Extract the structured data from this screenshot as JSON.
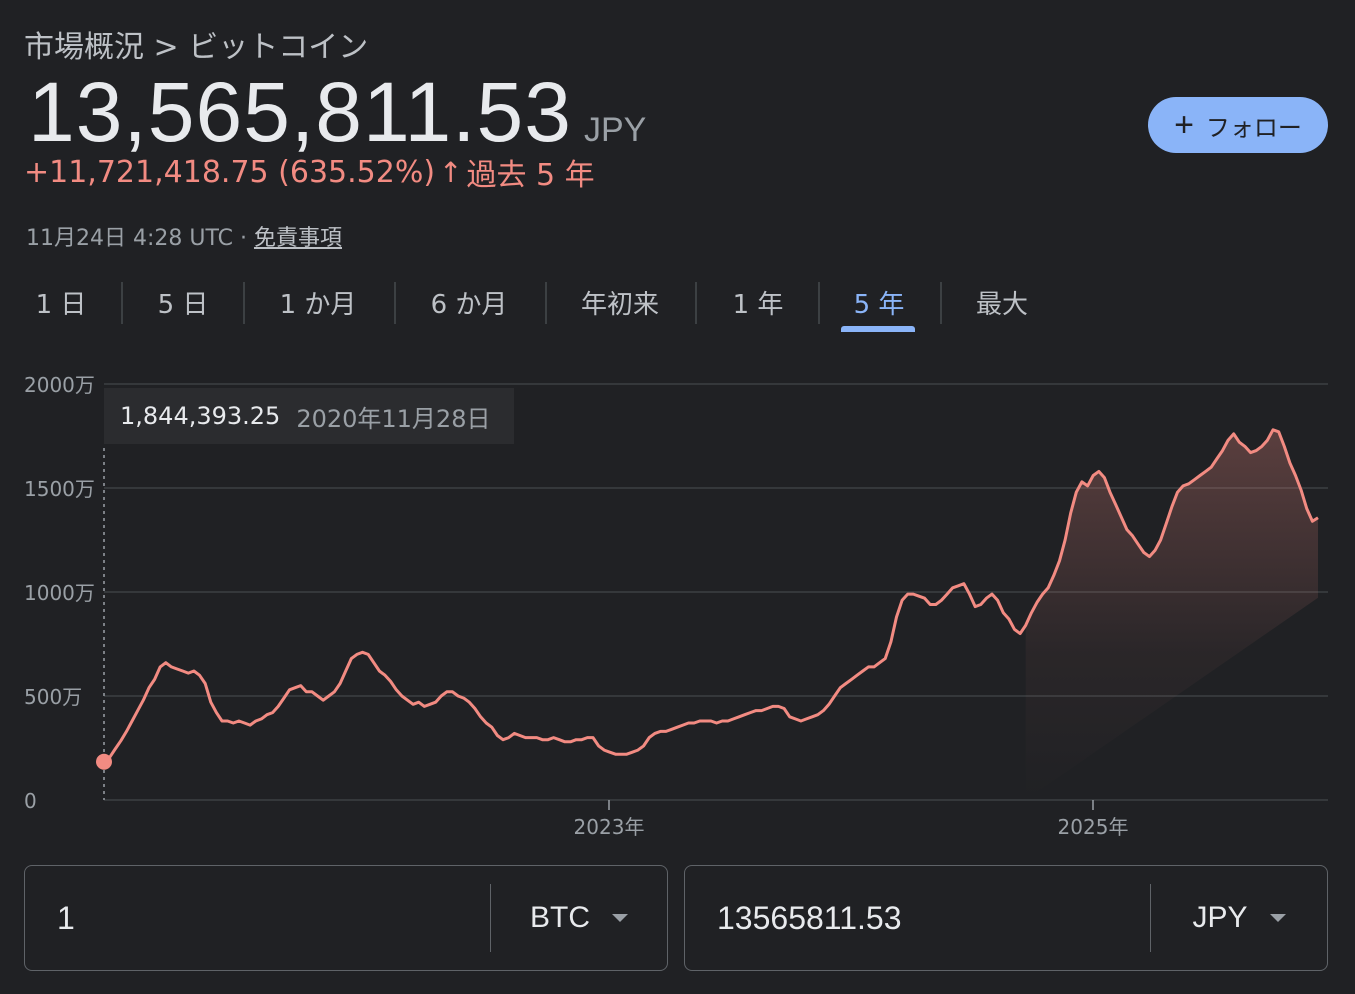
{
  "breadcrumb": {
    "parent": "市場概況",
    "separator": " > ",
    "current": "ビットコイン"
  },
  "price": {
    "value": "13,565,811.53",
    "currency": "JPY",
    "change_text": "+11,721,418.75 (635.52%)",
    "arrow": "↑",
    "period": "過去 5 年"
  },
  "timestamp": {
    "text": "11月24日 4:28 UTC · ",
    "disclaimer": "免責事項"
  },
  "follow_button": {
    "plus": "+",
    "label": "フォロー"
  },
  "tabs": [
    {
      "label": "1 日",
      "active": false
    },
    {
      "label": "5 日",
      "active": false
    },
    {
      "label": "1 か月",
      "active": false
    },
    {
      "label": "6 か月",
      "active": false
    },
    {
      "label": "年初来",
      "active": false
    },
    {
      "label": "1 年",
      "active": false
    },
    {
      "label": "5 年",
      "active": true
    },
    {
      "label": "最大",
      "active": false
    }
  ],
  "tooltip": {
    "value": "1,844,393.25",
    "date": "2020年11月28日"
  },
  "colors": {
    "background": "#202124",
    "line": "#f28b82",
    "accent": "#8ab4f8",
    "grid": "#3c4043"
  },
  "chart_data": {
    "type": "area",
    "series": [
      {
        "x_start": "2020-11-28",
        "x_end": "2025-11-24",
        "values_jpy_man": [
          184,
          205,
          245,
          285,
          330,
          380,
          430,
          480,
          540,
          580,
          640,
          660,
          640,
          630,
          620,
          610,
          620,
          600,
          560,
          470,
          420,
          380,
          380,
          370,
          380,
          370,
          360,
          380,
          390,
          410,
          420,
          450,
          490,
          530,
          540,
          550,
          520,
          520,
          500,
          480,
          500,
          520,
          560,
          620,
          680,
          700,
          710,
          700,
          660,
          620,
          600,
          570,
          530,
          500,
          480,
          460,
          470,
          450,
          460,
          470,
          500,
          520,
          520,
          500,
          490,
          470,
          440,
          400,
          370,
          350,
          310,
          290,
          300,
          320,
          310,
          300,
          300,
          300,
          290,
          290,
          300,
          290,
          280,
          280,
          290,
          290,
          300,
          300,
          260,
          240,
          230,
          220,
          220,
          220,
          230,
          240,
          260,
          300,
          320,
          330,
          330,
          340,
          350,
          360,
          370,
          370,
          380,
          380,
          380,
          370,
          380,
          380,
          390,
          400,
          410,
          420,
          430,
          430,
          440,
          450,
          450,
          440,
          400,
          390,
          380,
          390,
          400,
          410,
          430,
          460,
          500,
          540,
          560,
          580,
          600,
          620,
          640,
          640,
          660,
          680,
          760,
          880,
          960,
          990,
          990,
          980,
          970,
          940,
          940,
          960,
          990,
          1020,
          1030,
          1040,
          990,
          930,
          940,
          970,
          990,
          960,
          900,
          870,
          820,
          800,
          840,
          900,
          950,
          990,
          1020,
          1080,
          1150,
          1250,
          1380,
          1480,
          1530,
          1510,
          1560,
          1580,
          1550,
          1480,
          1420,
          1360,
          1300,
          1270,
          1230,
          1190,
          1170,
          1200,
          1250,
          1330,
          1410,
          1480,
          1510,
          1520,
          1540,
          1560,
          1580,
          1600,
          1640,
          1680,
          1730,
          1760,
          1720,
          1700,
          1670,
          1680,
          1700,
          1730,
          1780,
          1770,
          1700,
          1620,
          1560,
          1490,
          1400,
          1340,
          1357
        ]
      }
    ],
    "x_ticks": [
      "2023年",
      "2025年"
    ],
    "y_ticks": [
      "2000万",
      "1500万",
      "1000万",
      "500万",
      "0"
    ],
    "ylim": [
      0,
      2000
    ],
    "grid": true
  },
  "converter": {
    "left": {
      "value": "1",
      "unit": "BTC"
    },
    "right": {
      "value": "13565811.53",
      "unit": "JPY"
    }
  }
}
